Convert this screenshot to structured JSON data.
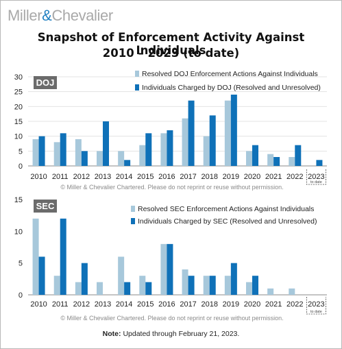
{
  "logo": {
    "part1": "Miller",
    "amp": "&",
    "part2": "Chevalier"
  },
  "title_line1": "Snapshot of Enforcement Activity Against Individuals",
  "title_line2": "2010 – 2023 (to date)",
  "colors": {
    "resolved": "#a7c8db",
    "charged": "#0f71b8",
    "badge": "#6b6b6b",
    "grid": "#e3e3e3",
    "axis": "#888888"
  },
  "note": {
    "label": "Note:",
    "text": "Updated through February 21, 2023."
  },
  "chart_data": [
    {
      "type": "bar",
      "badge": "DOJ",
      "categories": [
        "2010",
        "2011",
        "2012",
        "2013",
        "2014",
        "2015",
        "2016",
        "2017",
        "2018",
        "2019",
        "2020",
        "2021",
        "2022",
        "2023"
      ],
      "last_category_sub": "to date",
      "yticks": [
        0,
        5,
        10,
        15,
        20,
        25,
        30
      ],
      "ylim": [
        0,
        30
      ],
      "grid": true,
      "legend_position": "top-right",
      "series": [
        {
          "name": "Resolved DOJ Enforcement Actions Against Individuals",
          "color": "#a7c8db",
          "values": [
            9,
            8,
            9,
            5,
            5,
            7,
            11,
            16,
            10,
            22,
            5,
            4,
            3,
            0
          ]
        },
        {
          "name": "Individuals Charged by DOJ (Resolved and Unresolved)",
          "color": "#0f71b8",
          "values": [
            10,
            11,
            5,
            15,
            2,
            11,
            12,
            22,
            17,
            24,
            7,
            3,
            7,
            2
          ]
        }
      ],
      "copyright": "© Miller & Chevalier Chartered. Please do not reprint or reuse without permission."
    },
    {
      "type": "bar",
      "badge": "SEC",
      "categories": [
        "2010",
        "2011",
        "2012",
        "2013",
        "2014",
        "2015",
        "2016",
        "2017",
        "2018",
        "2019",
        "2020",
        "2021",
        "2022",
        "2023"
      ],
      "last_category_sub": "to date",
      "yticks": [
        0,
        5,
        10,
        15
      ],
      "ylim": [
        0,
        15
      ],
      "grid": false,
      "legend_position": "top-right",
      "series": [
        {
          "name": "Resolved SEC Enforcement Actions Against Individuals",
          "color": "#a7c8db",
          "values": [
            12,
            3,
            2,
            2,
            6,
            3,
            8,
            4,
            3,
            3,
            2,
            1,
            1,
            0
          ]
        },
        {
          "name": "Individuals Charged by SEC (Resolved and Unresolved)",
          "color": "#0f71b8",
          "values": [
            6,
            12,
            5,
            0,
            2,
            2,
            8,
            3,
            3,
            5,
            3,
            0,
            0,
            0
          ]
        }
      ],
      "copyright": "© Miller & Chevalier Chartered. Please do not reprint or reuse without permission."
    }
  ]
}
